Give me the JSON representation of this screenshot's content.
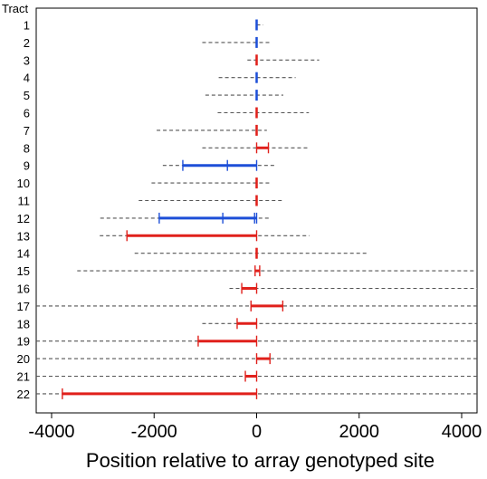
{
  "chart_data": {
    "type": "interval",
    "xlabel": "Position relative to array genotyped site",
    "ylabel": "Tract",
    "xlim": [
      -4300,
      4300
    ],
    "xticks": [
      -4000,
      -2000,
      0,
      2000,
      4000
    ],
    "xtick_labels": [
      "-4000",
      "-2000",
      "0",
      "2000",
      "4000"
    ],
    "grid": false,
    "colors": {
      "blue": "#1d4fd8",
      "red": "#e0201b",
      "dash": "#555555"
    },
    "tracts": [
      {
        "label": "1",
        "color": "blue",
        "dash": [
          0,
          130
        ],
        "tract": [
          0,
          0
        ],
        "ticks": [
          -10,
          10
        ]
      },
      {
        "label": "2",
        "color": "blue",
        "dash": [
          -1060,
          260
        ],
        "tract": [
          0,
          0
        ],
        "ticks": [
          -10,
          10
        ]
      },
      {
        "label": "3",
        "color": "red",
        "dash": [
          -180,
          1220
        ],
        "tract": [
          0,
          0
        ],
        "ticks": [
          -10,
          10
        ]
      },
      {
        "label": "4",
        "color": "blue",
        "dash": [
          -740,
          760
        ],
        "tract": [
          0,
          0
        ],
        "ticks": [
          -10,
          10
        ]
      },
      {
        "label": "5",
        "color": "blue",
        "dash": [
          -1000,
          520
        ],
        "tract": [
          0,
          0
        ],
        "ticks": [
          -10,
          10
        ]
      },
      {
        "label": "6",
        "color": "red",
        "dash": [
          -760,
          1020
        ],
        "tract": [
          0,
          0
        ],
        "ticks": [
          -10,
          10
        ]
      },
      {
        "label": "7",
        "color": "red",
        "dash": [
          -1950,
          200
        ],
        "tract": [
          0,
          0
        ],
        "ticks": [
          -10,
          10
        ]
      },
      {
        "label": "8",
        "color": "red",
        "dash": [
          -1060,
          1020
        ],
        "tract": [
          0,
          230
        ],
        "ticks": [
          0,
          230
        ]
      },
      {
        "label": "9",
        "color": "blue",
        "dash": [
          -1830,
          360
        ],
        "tract": [
          -1440,
          0
        ],
        "ticks": [
          -1440,
          -570,
          0
        ]
      },
      {
        "label": "10",
        "color": "red",
        "dash": [
          -2050,
          260
        ],
        "tract": [
          0,
          0
        ],
        "ticks": [
          -10,
          10
        ]
      },
      {
        "label": "11",
        "color": "red",
        "dash": [
          -2300,
          520
        ],
        "tract": [
          0,
          0
        ],
        "ticks": [
          -10,
          10
        ]
      },
      {
        "label": "12",
        "color": "blue",
        "dash": [
          -3050,
          260
        ],
        "tract": [
          -1900,
          0
        ],
        "ticks": [
          -1900,
          -660,
          -40,
          0
        ]
      },
      {
        "label": "13",
        "color": "red",
        "dash": [
          -3060,
          1030
        ],
        "tract": [
          -2530,
          0
        ],
        "ticks": [
          -2530,
          0
        ]
      },
      {
        "label": "14",
        "color": "red",
        "dash": [
          -2380,
          2150
        ],
        "tract": [
          0,
          0
        ],
        "ticks": [
          -10,
          10
        ]
      },
      {
        "label": "15",
        "color": "red",
        "dash": [
          -3500,
          4300
        ],
        "tract": [
          -30,
          60
        ],
        "ticks": [
          -30,
          60
        ]
      },
      {
        "label": "16",
        "color": "red",
        "dash": [
          -530,
          4300
        ],
        "tract": [
          -290,
          0
        ],
        "ticks": [
          -290,
          0
        ]
      },
      {
        "label": "17",
        "color": "red",
        "dash": [
          -4300,
          4300
        ],
        "tract": [
          -110,
          510
        ],
        "ticks": [
          -110,
          510
        ]
      },
      {
        "label": "18",
        "color": "red",
        "dash": [
          -1060,
          4300
        ],
        "tract": [
          -380,
          0
        ],
        "ticks": [
          -380,
          0
        ]
      },
      {
        "label": "19",
        "color": "red",
        "dash": [
          -4300,
          4300
        ],
        "tract": [
          -1140,
          0
        ],
        "ticks": [
          -1140,
          0
        ]
      },
      {
        "label": "20",
        "color": "red",
        "dash": [
          -4300,
          4300
        ],
        "tract": [
          0,
          260
        ],
        "ticks": [
          0,
          260
        ]
      },
      {
        "label": "21",
        "color": "red",
        "dash": [
          -4300,
          4300
        ],
        "tract": [
          -220,
          0
        ],
        "ticks": [
          -220,
          0
        ]
      },
      {
        "label": "22",
        "color": "red",
        "dash": [
          -4300,
          4300
        ],
        "tract": [
          -3790,
          0
        ],
        "ticks": [
          -3790,
          0
        ]
      }
    ]
  }
}
